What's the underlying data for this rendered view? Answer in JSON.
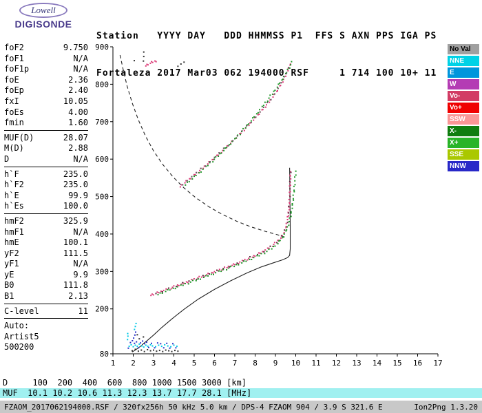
{
  "app": {
    "brand": "Lowell",
    "product": "DIGISONDE"
  },
  "header": {
    "line1": "Station   YYYY DAY   DDD HHMMSS P1  FFS S AXN PPS IGA PS",
    "line2": "Fortaleza 2017 Mar03 062 194000 RSF     1 714 100 10+ 11"
  },
  "parameters": {
    "groups": [
      {
        "rows": [
          [
            "foF2",
            "9.750"
          ],
          [
            "foF1",
            "N/A"
          ],
          [
            "foF1p",
            "N/A"
          ],
          [
            "foE",
            "2.36"
          ],
          [
            "foEp",
            "2.40"
          ],
          [
            "fxI",
            "10.05"
          ],
          [
            "foEs",
            "4.00"
          ],
          [
            "fmin",
            "1.60"
          ]
        ]
      },
      {
        "rows": [
          [
            "MUF(D)",
            "28.07"
          ],
          [
            "M(D)",
            "2.88"
          ],
          [
            "D",
            "N/A"
          ]
        ]
      },
      {
        "rows": [
          [
            "h`F",
            "235.0"
          ],
          [
            "h`F2",
            "235.0"
          ],
          [
            "h`E",
            "99.9"
          ],
          [
            "h`Es",
            "100.0"
          ]
        ]
      },
      {
        "rows": [
          [
            "hmF2",
            "325.9"
          ],
          [
            "hmF1",
            "N/A"
          ],
          [
            "hmE",
            "100.1"
          ],
          [
            "yF2",
            "111.5"
          ],
          [
            "yF1",
            "N/A"
          ],
          [
            "yE",
            "9.9"
          ],
          [
            "B0",
            "111.8"
          ],
          [
            "B1",
            "2.13"
          ]
        ]
      },
      {
        "rows": [
          [
            "C-level",
            "11"
          ]
        ]
      }
    ],
    "auto_lines": [
      "Auto:",
      "Artist5",
      "500200"
    ]
  },
  "legend": {
    "items": [
      {
        "label": "No Val",
        "bg": "#a0a0a0",
        "fg": "#000000"
      },
      {
        "label": "NNE",
        "bg": "#00d2e6",
        "fg": "#ffffff"
      },
      {
        "label": "E",
        "bg": "#0096dc",
        "fg": "#ffffff"
      },
      {
        "label": "W",
        "bg": "#b43cb4",
        "fg": "#ffffff"
      },
      {
        "label": "Vo-",
        "bg": "#d23c64",
        "fg": "#ffffff"
      },
      {
        "label": "Vo+",
        "bg": "#f00000",
        "fg": "#ffffff"
      },
      {
        "label": "SSW",
        "bg": "#fa9696",
        "fg": "#ffffff"
      },
      {
        "label": "X-",
        "bg": "#0f7d0f",
        "fg": "#ffffff"
      },
      {
        "label": "X+",
        "bg": "#28b428",
        "fg": "#ffffff"
      },
      {
        "label": "SSE",
        "bg": "#aac800",
        "fg": "#ffffff"
      },
      {
        "label": "NNW",
        "bg": "#2828c8",
        "fg": "#ffffff"
      }
    ]
  },
  "chart_data": {
    "type": "scatter",
    "title": "",
    "xlabel": "",
    "ylabel": "",
    "xlim": [
      1,
      17
    ],
    "ylim": [
      80,
      900
    ],
    "x_ticks": [
      1,
      2,
      3,
      4,
      5,
      6,
      7,
      8,
      9,
      10,
      11,
      12,
      13,
      14,
      15,
      16,
      17
    ],
    "y_ticks": [
      80,
      200,
      300,
      400,
      500,
      600,
      700,
      800,
      900
    ],
    "grid": false,
    "lines": [
      {
        "name": "true-height-profile",
        "color": "#202020",
        "dash": false,
        "points": [
          [
            1.95,
            85
          ],
          [
            2.1,
            90
          ],
          [
            2.25,
            96
          ],
          [
            2.36,
            100
          ],
          [
            2.5,
            107
          ],
          [
            2.7,
            116
          ],
          [
            3.0,
            130
          ],
          [
            3.4,
            150
          ],
          [
            3.9,
            173
          ],
          [
            4.5,
            199
          ],
          [
            5.2,
            226
          ],
          [
            6.0,
            252
          ],
          [
            6.8,
            275
          ],
          [
            7.6,
            296
          ],
          [
            8.3,
            312
          ],
          [
            8.9,
            323
          ],
          [
            9.35,
            331
          ],
          [
            9.6,
            337
          ],
          [
            9.7,
            343
          ],
          [
            9.73,
            360
          ],
          [
            9.73,
            420
          ],
          [
            9.72,
            480
          ],
          [
            9.71,
            540
          ],
          [
            9.7,
            577
          ]
        ]
      },
      {
        "name": "transmission-curve",
        "color": "#202020",
        "dash": true,
        "points": [
          [
            1.35,
            878
          ],
          [
            1.5,
            840
          ],
          [
            1.7,
            795
          ],
          [
            1.95,
            750
          ],
          [
            2.25,
            705
          ],
          [
            2.6,
            662
          ],
          [
            3.0,
            622
          ],
          [
            3.45,
            586
          ],
          [
            3.95,
            553
          ],
          [
            4.5,
            523
          ],
          [
            5.1,
            496
          ],
          [
            5.75,
            472
          ],
          [
            6.4,
            452
          ],
          [
            7.1,
            434
          ],
          [
            7.8,
            419
          ],
          [
            8.5,
            407
          ],
          [
            9.1,
            398
          ],
          [
            9.45,
            392
          ]
        ]
      }
    ],
    "series": [
      {
        "name": "f2-trace-o",
        "color": "#dc3c78",
        "size": 2,
        "spacing": 3,
        "points": [
          [
            2.85,
            237
          ],
          [
            3.1,
            241
          ],
          [
            3.35,
            246
          ],
          [
            3.6,
            251
          ],
          [
            3.85,
            256
          ],
          [
            4.1,
            261
          ],
          [
            4.35,
            266
          ],
          [
            4.6,
            271
          ],
          [
            4.85,
            276
          ],
          [
            5.1,
            281
          ],
          [
            5.35,
            286
          ],
          [
            5.6,
            291
          ],
          [
            5.85,
            296
          ],
          [
            6.1,
            301
          ],
          [
            6.35,
            306
          ],
          [
            6.6,
            311
          ],
          [
            6.85,
            316
          ],
          [
            7.1,
            321
          ],
          [
            7.35,
            327
          ],
          [
            7.6,
            333
          ],
          [
            7.85,
            339
          ],
          [
            8.1,
            345
          ],
          [
            8.35,
            352
          ],
          [
            8.6,
            360
          ],
          [
            8.85,
            369
          ],
          [
            9.05,
            378
          ],
          [
            9.25,
            389
          ],
          [
            9.4,
            401
          ],
          [
            9.5,
            415
          ],
          [
            9.58,
            433
          ],
          [
            9.64,
            455
          ],
          [
            9.68,
            480
          ],
          [
            9.71,
            510
          ],
          [
            9.73,
            542
          ],
          [
            9.75,
            574
          ]
        ]
      },
      {
        "name": "f2-trace-o-dark",
        "color": "#5a3040",
        "size": 2,
        "spacing": 3,
        "sparse": 4,
        "points_of": "f2-trace-o"
      },
      {
        "name": "f2-trace-x",
        "color": "#1e9628",
        "size": 2,
        "spacing": 4,
        "points": [
          [
            3.2,
            239
          ],
          [
            3.7,
            249
          ],
          [
            4.2,
            259
          ],
          [
            4.7,
            269
          ],
          [
            5.2,
            279
          ],
          [
            5.7,
            289
          ],
          [
            6.2,
            299
          ],
          [
            6.7,
            309
          ],
          [
            7.2,
            320
          ],
          [
            7.7,
            331
          ],
          [
            8.2,
            343
          ],
          [
            8.7,
            357
          ],
          [
            9.1,
            374
          ],
          [
            9.4,
            394
          ],
          [
            9.6,
            418
          ],
          [
            9.75,
            448
          ],
          [
            9.85,
            482
          ],
          [
            9.92,
            518
          ],
          [
            9.97,
            550
          ],
          [
            10.02,
            575
          ]
        ]
      },
      {
        "name": "hop2-trace-o",
        "color": "#dc3c78",
        "size": 2,
        "spacing": 3,
        "points": [
          [
            4.3,
            527
          ],
          [
            4.6,
            540
          ],
          [
            4.9,
            553
          ],
          [
            5.2,
            566
          ],
          [
            5.5,
            580
          ],
          [
            5.8,
            594
          ],
          [
            6.1,
            608
          ],
          [
            6.4,
            623
          ],
          [
            6.7,
            638
          ],
          [
            7.0,
            654
          ],
          [
            7.3,
            670
          ],
          [
            7.6,
            687
          ],
          [
            7.9,
            704
          ],
          [
            8.2,
            722
          ],
          [
            8.5,
            741
          ],
          [
            8.8,
            761
          ],
          [
            9.05,
            780
          ],
          [
            9.25,
            798
          ],
          [
            9.45,
            818
          ],
          [
            9.6,
            836
          ],
          [
            9.7,
            850
          ],
          [
            9.78,
            862
          ]
        ]
      },
      {
        "name": "hop2-trace-x",
        "color": "#1e9628",
        "size": 2,
        "spacing": 4,
        "points": [
          [
            4.55,
            532
          ],
          [
            5.0,
            552
          ],
          [
            5.45,
            573
          ],
          [
            5.9,
            595
          ],
          [
            6.35,
            618
          ],
          [
            6.8,
            642
          ],
          [
            7.25,
            668
          ],
          [
            7.7,
            696
          ],
          [
            8.15,
            726
          ],
          [
            8.6,
            757
          ],
          [
            9.0,
            786
          ],
          [
            9.3,
            810
          ],
          [
            9.55,
            832
          ],
          [
            9.75,
            852
          ],
          [
            9.88,
            864
          ]
        ]
      },
      {
        "name": "hop2-trace-dark",
        "color": "#606060",
        "size": 2,
        "spacing": 3,
        "sparse": 3,
        "points_of": "hop2-trace-o"
      },
      {
        "name": "top-fragment-o",
        "color": "#dc3c78",
        "size": 2,
        "spacing": 3,
        "points": [
          [
            2.6,
            850
          ],
          [
            2.75,
            854
          ],
          [
            2.9,
            858
          ],
          [
            3.05,
            861
          ],
          [
            3.2,
            864
          ]
        ]
      },
      {
        "name": "top-specks-dark",
        "color": "#303030",
        "size": 2,
        "connect": false,
        "points": [
          [
            2.52,
            886
          ],
          [
            2.52,
            874
          ],
          [
            2.5,
            862
          ],
          [
            4.2,
            848
          ],
          [
            4.35,
            854
          ],
          [
            4.5,
            859
          ],
          [
            2.05,
            863
          ]
        ]
      },
      {
        "name": "e-layer-cyan",
        "color": "#00c8e6",
        "size": 2,
        "connect": false,
        "points": [
          [
            1.72,
            118
          ],
          [
            1.74,
            127
          ],
          [
            1.73,
            134
          ],
          [
            1.8,
            100
          ],
          [
            1.9,
            104
          ],
          [
            2.0,
            99
          ],
          [
            2.1,
            103
          ],
          [
            2.2,
            100
          ],
          [
            2.3,
            106
          ],
          [
            2.42,
            101
          ],
          [
            2.52,
            98
          ],
          [
            2.62,
            103
          ],
          [
            2.72,
            100
          ],
          [
            2.85,
            104
          ],
          [
            2.95,
            101
          ],
          [
            3.1,
            99
          ],
          [
            3.25,
            103
          ],
          [
            3.4,
            100
          ],
          [
            3.55,
            104
          ],
          [
            3.7,
            101
          ],
          [
            3.85,
            99
          ],
          [
            4.0,
            103
          ],
          [
            4.15,
            100
          ],
          [
            2.06,
            145
          ],
          [
            2.1,
            153
          ],
          [
            2.14,
            161
          ]
        ]
      },
      {
        "name": "e-layer-blue",
        "color": "#2832c8",
        "size": 2,
        "connect": false,
        "points": [
          [
            1.76,
            95
          ],
          [
            1.86,
            110
          ],
          [
            1.96,
            115
          ],
          [
            2.06,
            108
          ],
          [
            2.16,
            112
          ],
          [
            2.26,
            96
          ],
          [
            2.36,
            109
          ],
          [
            2.46,
            114
          ],
          [
            2.56,
            107
          ],
          [
            2.66,
            111
          ],
          [
            2.76,
            97
          ],
          [
            2.9,
            108
          ],
          [
            3.05,
            96
          ],
          [
            3.2,
            109
          ],
          [
            3.35,
            107
          ],
          [
            3.5,
            96
          ],
          [
            3.65,
            108
          ],
          [
            3.8,
            95
          ],
          [
            3.95,
            107
          ],
          [
            4.1,
            96
          ],
          [
            2.02,
            122
          ],
          [
            2.08,
            130
          ],
          [
            2.12,
            138
          ]
        ]
      },
      {
        "name": "e-layer-dark",
        "color": "#303030",
        "size": 2,
        "connect": false,
        "points": [
          [
            1.95,
            88
          ],
          [
            2.1,
            92
          ],
          [
            2.25,
            87
          ],
          [
            2.4,
            90
          ],
          [
            2.55,
            86
          ],
          [
            2.7,
            91
          ],
          [
            2.85,
            88
          ],
          [
            3.0,
            90
          ],
          [
            3.15,
            87
          ],
          [
            3.3,
            89
          ],
          [
            3.45,
            86
          ],
          [
            3.6,
            90
          ],
          [
            3.75,
            88
          ],
          [
            3.9,
            86
          ],
          [
            4.05,
            89
          ],
          [
            4.2,
            87
          ],
          [
            2.3,
            120
          ],
          [
            2.5,
            125
          ],
          [
            2.2,
            131
          ]
        ]
      }
    ]
  },
  "bottom": {
    "d_row": {
      "label": "D",
      "values": [
        "100",
        "200",
        "400",
        "600",
        "800",
        "1000",
        "1500",
        "3000"
      ],
      "unit": "[km]"
    },
    "muf_row": {
      "label": "MUF",
      "values": [
        "10.1",
        "10.2",
        "10.6",
        "11.3",
        "12.3",
        "13.7",
        "17.7",
        "28.1"
      ],
      "unit": "[MHz]",
      "bg": "#a0f0f0"
    },
    "status": {
      "left": "FZAOM_2017062194000.RSF / 320fx256h 50 kHz 5.0 km / DPS-4 FZAOM 904 / 3.9 S 321.6 E",
      "right": "Ion2Png 1.3.20"
    }
  }
}
